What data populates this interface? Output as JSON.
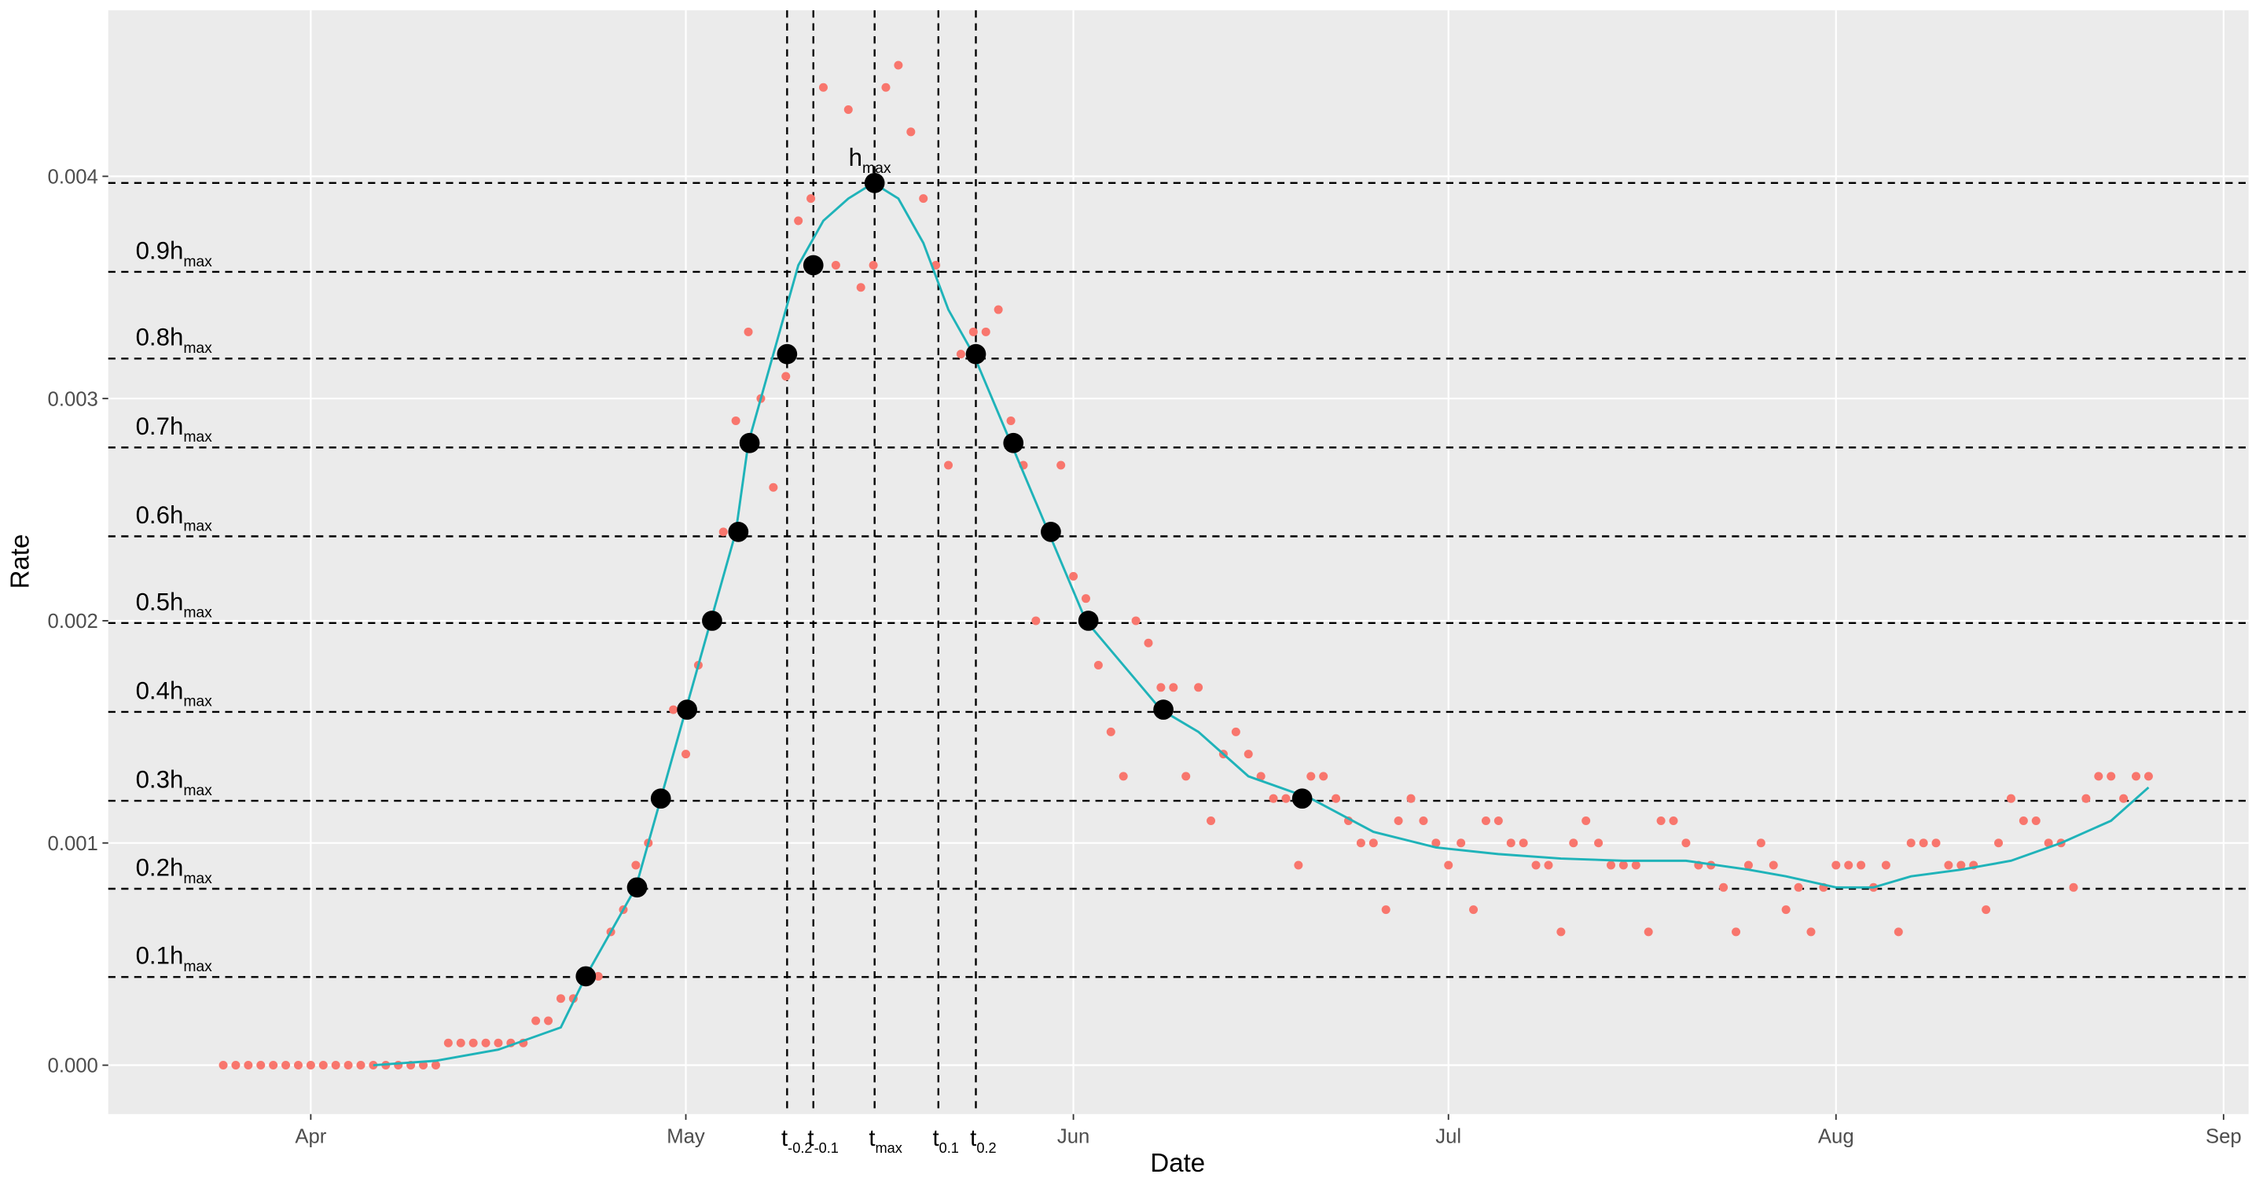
{
  "chart_data": {
    "type": "scatter",
    "x_label": "Date",
    "y_label": "Rate",
    "xlim": [
      -16.2,
      155
    ],
    "ylim": [
      -0.00022,
      0.004747
    ],
    "xticks": [
      {
        "value": 0,
        "label": "Apr"
      },
      {
        "value": 30,
        "label": "May"
      },
      {
        "value": 61,
        "label": "Jun"
      },
      {
        "value": 91,
        "label": "Jul"
      },
      {
        "value": 122,
        "label": "Aug"
      },
      {
        "value": 153,
        "label": "Sep"
      }
    ],
    "yticks": [
      {
        "value": 0,
        "label": "0.000"
      },
      {
        "value": 0.001,
        "label": "0.001"
      },
      {
        "value": 0.002,
        "label": "0.002"
      },
      {
        "value": 0.003,
        "label": "0.003"
      },
      {
        "value": 0.004,
        "label": "0.004"
      }
    ],
    "grid": true,
    "series": [
      {
        "kind": "points",
        "color": "#f8766d",
        "x": [
          -7,
          -6,
          -5,
          -4,
          -3,
          -2,
          -1,
          0,
          1,
          2,
          3,
          4,
          5,
          6,
          7,
          8,
          9,
          10,
          11,
          12,
          13,
          14,
          15,
          16,
          17,
          18,
          19,
          20,
          21,
          22,
          23,
          24,
          25,
          26,
          27,
          28,
          29,
          30,
          31,
          32,
          33,
          34,
          35,
          36,
          37,
          38,
          39,
          40,
          41,
          42,
          43,
          44,
          45,
          46,
          47,
          48,
          49,
          50,
          51,
          52,
          53,
          54,
          55,
          56,
          57,
          58,
          59,
          60,
          61,
          62,
          63,
          64,
          65,
          66,
          67,
          68,
          69,
          70,
          71,
          72,
          73,
          74,
          75,
          76,
          77,
          78,
          79,
          80,
          81,
          82,
          83,
          84,
          85,
          86,
          87,
          88,
          89,
          90,
          91,
          92,
          93,
          94,
          95,
          96,
          97,
          98,
          99,
          100,
          101,
          102,
          103,
          104,
          105,
          106,
          107,
          108,
          109,
          110,
          111,
          112,
          113,
          114,
          115,
          116,
          117,
          118,
          119,
          120,
          121,
          122,
          123,
          124,
          125,
          126,
          127,
          128,
          129,
          130,
          131,
          132,
          133,
          134,
          135,
          136,
          137,
          138,
          139,
          140,
          141,
          142,
          143,
          144,
          145,
          146,
          147
        ],
        "values": [
          0,
          0,
          0,
          0,
          0,
          0,
          0,
          0,
          0,
          0,
          0,
          0,
          0,
          0,
          0,
          0,
          0,
          0,
          0.0001,
          0.0001,
          0.0001,
          0.0001,
          0.0001,
          0.0001,
          0.0001,
          0.0002,
          0.0002,
          0.0003,
          0.0003,
          0.0004,
          0.0004,
          0.0006,
          0.0007,
          0.0009,
          0.001,
          0.0012,
          0.0016,
          0.0014,
          0.0018,
          0.002,
          0.0024,
          0.0029,
          0.0033,
          0.003,
          0.0026,
          0.0031,
          0.0038,
          0.0039,
          0.0044,
          0.0036,
          0.0043,
          0.0035,
          0.0036,
          0.0044,
          0.0045,
          0.0042,
          0.0039,
          0.0036,
          0.0027,
          0.0032,
          0.0033,
          0.0033,
          0.0034,
          0.0029,
          0.0027,
          0.002,
          0.0024,
          0.0027,
          0.0022,
          0.0021,
          0.0018,
          0.0015,
          0.0013,
          0.002,
          0.0019,
          0.0017,
          0.0017,
          0.0013,
          0.0017,
          0.0011,
          0.0014,
          0.0015,
          0.0014,
          0.0013,
          0.0012,
          0.0012,
          0.0009,
          0.0013,
          0.0013,
          0.0012,
          0.0011,
          0.001,
          0.001,
          0.0007,
          0.0011,
          0.0012,
          0.0011,
          0.001,
          0.0009,
          0.001,
          0.0007,
          0.0011,
          0.0011,
          0.001,
          0.001,
          0.0009,
          0.0009,
          0.0006,
          0.001,
          0.0011,
          0.001,
          0.0009,
          0.0009,
          0.0009,
          0.0006,
          0.0011,
          0.0011,
          0.001,
          0.0009,
          0.0009,
          0.0008,
          0.0006,
          0.0009,
          0.001,
          0.0009,
          0.0007,
          0.0008,
          0.0006,
          0.0008,
          0.0009,
          0.0009,
          0.0009,
          0.0008,
          0.0009,
          0.0006,
          0.001,
          0.001,
          0.001,
          0.0009,
          0.0009,
          0.0009,
          0.0007,
          0.001,
          0.0012,
          0.0011,
          0.0011,
          0.001,
          0.001,
          0.0008,
          0.0012,
          0.0013,
          0.0013,
          0.0012,
          0.0013,
          0.0013
        ]
      },
      {
        "kind": "line",
        "color": "#1fb3b9",
        "x": [
          5,
          10,
          15,
          20,
          22,
          24,
          26,
          28,
          30,
          32,
          34,
          35,
          37,
          39,
          41,
          43,
          45,
          47,
          49,
          51,
          53,
          56,
          59,
          62,
          65,
          68,
          71,
          75,
          80,
          85,
          90,
          95,
          100,
          105,
          110,
          115,
          118,
          122,
          125,
          128,
          132,
          136,
          140,
          144,
          147
        ],
        "values": [
          0,
          2e-05,
          7e-05,
          0.00017,
          0.0004,
          0.0006,
          0.0008,
          0.0012,
          0.0016,
          0.002,
          0.0024,
          0.0028,
          0.0032,
          0.0036,
          0.0038,
          0.0039,
          0.00397,
          0.0039,
          0.0037,
          0.0034,
          0.0032,
          0.0028,
          0.0024,
          0.002,
          0.0018,
          0.0016,
          0.0015,
          0.0013,
          0.0012,
          0.00105,
          0.00098,
          0.00095,
          0.00093,
          0.00092,
          0.00092,
          0.00088,
          0.00085,
          0.0008,
          0.0008,
          0.00085,
          0.00088,
          0.00092,
          0.001,
          0.0011,
          0.00125
        ]
      },
      {
        "kind": "highlight",
        "color": "#000000",
        "x": [
          22,
          26.1,
          28,
          30.1,
          32.1,
          34.2,
          35.1,
          38.1,
          40.2,
          45.1,
          53.2,
          56.2,
          59.2,
          62.2,
          68.2,
          79.3
        ],
        "values": [
          0.0004,
          0.0008,
          0.0012,
          0.0016,
          0.002,
          0.0024,
          0.0028,
          0.0032,
          0.0036,
          0.00397,
          0.0032,
          0.0028,
          0.0024,
          0.002,
          0.0016,
          0.0012
        ]
      }
    ],
    "hlines": [
      {
        "value": 0.000397,
        "label": "0.1h",
        "sub": "max"
      },
      {
        "value": 0.000794,
        "label": "0.2h",
        "sub": "max"
      },
      {
        "value": 0.00119,
        "label": "0.3h",
        "sub": "max"
      },
      {
        "value": 0.00159,
        "label": "0.4h",
        "sub": "max"
      },
      {
        "value": 0.00199,
        "label": "0.5h",
        "sub": "max"
      },
      {
        "value": 0.00238,
        "label": "0.6h",
        "sub": "max"
      },
      {
        "value": 0.00278,
        "label": "0.7h",
        "sub": "max"
      },
      {
        "value": 0.00318,
        "label": "0.8h",
        "sub": "max"
      },
      {
        "value": 0.00357,
        "label": "0.9h",
        "sub": "max"
      },
      {
        "value": 0.00397,
        "label": "h",
        "sub": "max"
      }
    ],
    "vlines": [
      {
        "value": 38.1,
        "label": "t",
        "sub": "-0.2"
      },
      {
        "value": 40.2,
        "label": "t",
        "sub": "-0.1"
      },
      {
        "value": 45.1,
        "label": "t",
        "sub": "max"
      },
      {
        "value": 50.2,
        "label": "t",
        "sub": "0.1"
      },
      {
        "value": 53.2,
        "label": "t",
        "sub": "0.2"
      }
    ]
  }
}
